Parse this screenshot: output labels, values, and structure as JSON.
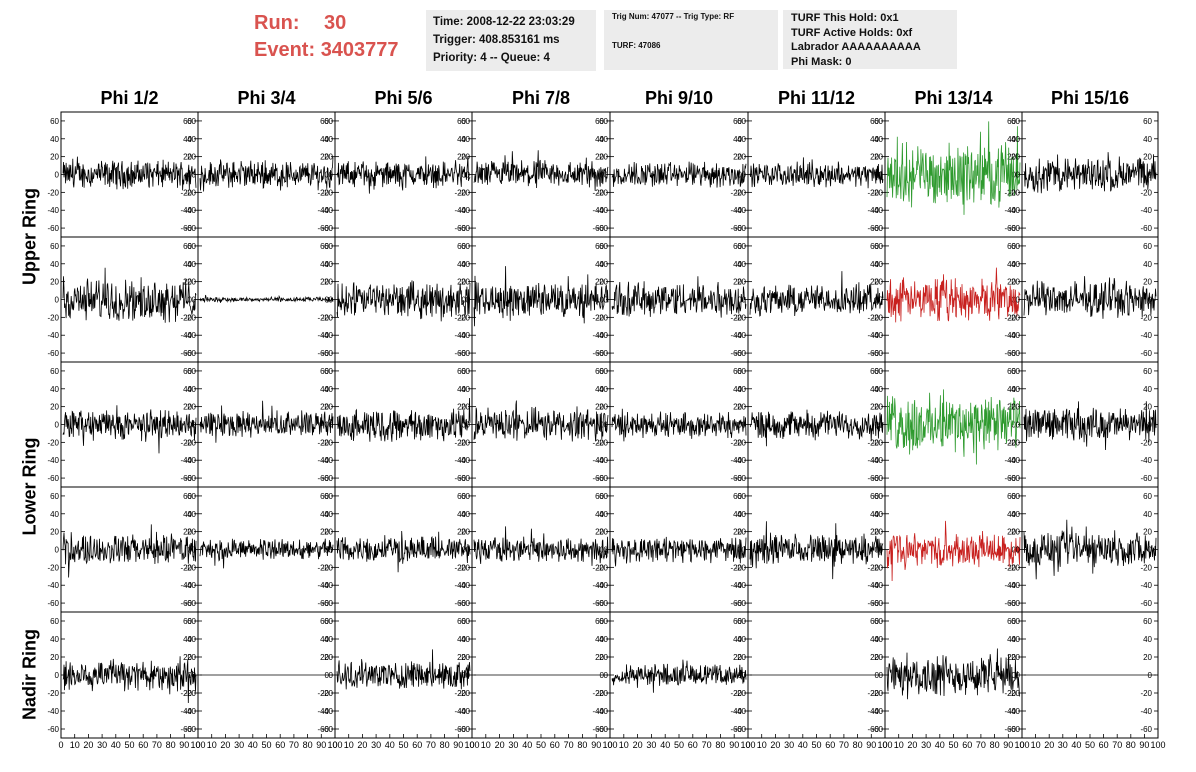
{
  "header": {
    "run_label": "Run:",
    "run_value": "30",
    "event_label": "Event:",
    "event_value": "3403777",
    "info_box_1": [
      "Time: 2008-12-22 23:03:29",
      "Trigger: 408.853161 ms",
      "Priority: 4 -- Queue: 4"
    ],
    "info_box_2": [
      "Trig Num: 47077 -- Trig Type: RF",
      "TURF: 47086"
    ],
    "info_box_3": [
      "TURF This Hold: 0x1",
      "TURF Active Holds: 0xf",
      "Labrador AAAAAAAAAA",
      "Phi Mask: 0"
    ]
  },
  "chart_data": {
    "type": "line",
    "title": "",
    "columns": [
      "Phi 1/2",
      "Phi 3/4",
      "Phi 5/6",
      "Phi 7/8",
      "Phi 9/10",
      "Phi 11/12",
      "Phi 13/14",
      "Phi 15/16"
    ],
    "ring_labels": [
      "Upper Ring",
      "Lower Ring",
      "Nadir Ring"
    ],
    "xlim": [
      0,
      100
    ],
    "ylim": [
      -70,
      70
    ],
    "x_ticks": [
      0,
      10,
      20,
      30,
      40,
      50,
      60,
      70,
      80,
      90,
      100
    ],
    "y_ticks": [
      -60,
      -40,
      -20,
      0,
      20,
      40,
      60
    ],
    "grid": false,
    "line_colors": {
      "default": "#000000",
      "highlight_green": "#2e9a2e",
      "highlight_red": "#c8201e"
    },
    "panels": [
      [
        {
          "amp": 12,
          "color": "default"
        },
        {
          "amp": 12,
          "color": "default"
        },
        {
          "amp": 11,
          "color": "default"
        },
        {
          "amp": 12,
          "color": "default"
        },
        {
          "amp": 11,
          "color": "default"
        },
        {
          "amp": 10,
          "color": "default"
        },
        {
          "amp": 26,
          "color": "highlight_green"
        },
        {
          "amp": 15,
          "color": "default"
        }
      ],
      [
        {
          "amp": 18,
          "color": "default"
        },
        {
          "amp": 2,
          "color": "default"
        },
        {
          "amp": 15,
          "color": "default"
        },
        {
          "amp": 15,
          "color": "default"
        },
        {
          "amp": 15,
          "color": "default"
        },
        {
          "amp": 13,
          "color": "default"
        },
        {
          "amp": 18,
          "color": "highlight_red"
        },
        {
          "amp": 15,
          "color": "default"
        }
      ],
      [
        {
          "amp": 13,
          "color": "default"
        },
        {
          "amp": 11,
          "color": "default"
        },
        {
          "amp": 14,
          "color": "default"
        },
        {
          "amp": 14,
          "color": "default"
        },
        {
          "amp": 11,
          "color": "default"
        },
        {
          "amp": 12,
          "color": "default"
        },
        {
          "amp": 25,
          "color": "highlight_green"
        },
        {
          "amp": 14,
          "color": "default"
        }
      ],
      [
        {
          "amp": 13,
          "color": "default"
        },
        {
          "amp": 9,
          "color": "default"
        },
        {
          "amp": 11,
          "color": "default"
        },
        {
          "amp": 11,
          "color": "default"
        },
        {
          "amp": 11,
          "color": "default"
        },
        {
          "amp": 13,
          "color": "default"
        },
        {
          "amp": 14,
          "color": "highlight_red"
        },
        {
          "amp": 15,
          "color": "default"
        }
      ],
      [
        {
          "amp": 14,
          "color": "default"
        },
        {
          "amp": 0,
          "color": "default"
        },
        {
          "amp": 12,
          "color": "default"
        },
        {
          "amp": 0,
          "color": "default"
        },
        {
          "amp": 9,
          "color": "default"
        },
        {
          "amp": 0,
          "color": "default"
        },
        {
          "amp": 17,
          "color": "default"
        },
        {
          "amp": 0,
          "color": "default"
        }
      ]
    ]
  }
}
